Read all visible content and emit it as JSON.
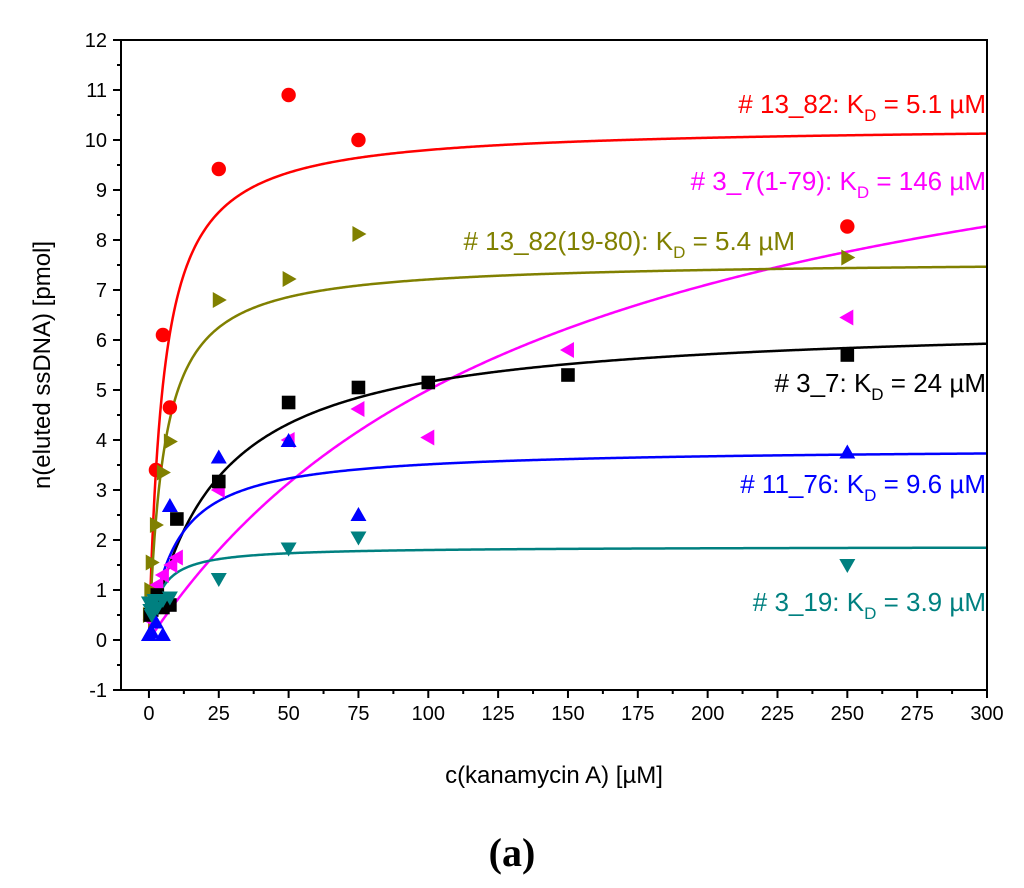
{
  "chart_data": {
    "type": "scatter",
    "title": "",
    "xlabel": "c(kanamycin A) [µM]",
    "ylabel": "n(eluted ssDNA) [pmol]",
    "xlim": [
      -10,
      300
    ],
    "ylim": [
      -1,
      12
    ],
    "x_ticks": [
      0,
      25,
      50,
      75,
      100,
      125,
      150,
      175,
      200,
      225,
      250,
      275,
      300
    ],
    "y_ticks": [
      -1,
      0,
      1,
      2,
      3,
      4,
      5,
      6,
      7,
      8,
      9,
      10,
      11,
      12
    ],
    "panel_label": "(a)",
    "series": [
      {
        "name": "# 13_82",
        "label_prefix": "# 13_82: K",
        "label_suffix": " = 5.1 µM",
        "kd_subscript": "D",
        "color": "#ff0000",
        "marker": "circle",
        "fit": {
          "bmax": 10.3,
          "kd": 5.1
        },
        "x": [
          2.5,
          5,
          7.5,
          25,
          50,
          75,
          250
        ],
        "y": [
          3.4,
          6.1,
          4.65,
          9.42,
          10.9,
          10.0,
          8.27
        ]
      },
      {
        "name": "# 3_7(1-79)",
        "label_prefix": "# 3_7(1-79): K",
        "label_suffix": " = 146 µM",
        "kd_subscript": "D",
        "color": "#ff00ff",
        "marker": "triangle-left",
        "fit": {
          "bmax": 12.3,
          "kd": 146
        },
        "x": [
          0.5,
          1,
          2,
          3,
          5,
          8,
          10,
          25,
          50,
          75,
          100,
          150,
          250
        ],
        "y": [
          0.4,
          0.7,
          1.05,
          1.1,
          1.3,
          1.5,
          1.65,
          3.0,
          4.0,
          4.62,
          4.05,
          5.8,
          6.45
        ]
      },
      {
        "name": "# 13_82(19-80)",
        "label_prefix": "# 13_82(19-80): K",
        "label_suffix": " = 5.4 µM",
        "kd_subscript": "D",
        "color": "#808000",
        "marker": "triangle-right",
        "fit": {
          "bmax": 7.6,
          "kd": 5.4
        },
        "x": [
          0,
          0.5,
          1,
          2.5,
          5,
          7.5,
          25,
          50,
          75,
          250
        ],
        "y": [
          0.5,
          1.0,
          1.55,
          2.3,
          3.35,
          3.97,
          6.8,
          7.22,
          8.12,
          7.65
        ]
      },
      {
        "name": "# 3_7",
        "label_prefix": "# 3_7: K",
        "label_suffix": " = 24 µM",
        "kd_subscript": "D",
        "color": "#000000",
        "marker": "square",
        "fit": {
          "bmax": 6.4,
          "kd": 24
        },
        "x": [
          0.5,
          1,
          2,
          3,
          5,
          7.5,
          10,
          25,
          50,
          75,
          100,
          150,
          250
        ],
        "y": [
          0.5,
          0.6,
          0.75,
          0.9,
          0.65,
          0.7,
          2.42,
          3.17,
          4.75,
          5.05,
          5.15,
          5.3,
          5.7
        ]
      },
      {
        "name": "# 11_76",
        "label_prefix": "# 11_76: K",
        "label_suffix": " = 9.6 µM",
        "kd_subscript": "D",
        "color": "#0000ff",
        "marker": "triangle-up",
        "fit": {
          "bmax": 3.85,
          "kd": 9.6
        },
        "x": [
          0,
          1,
          2.5,
          5,
          7.5,
          25,
          50,
          75,
          250
        ],
        "y": [
          0.1,
          0.15,
          0.35,
          0.1,
          2.68,
          3.65,
          3.98,
          2.5,
          3.75
        ]
      },
      {
        "name": "# 3_19",
        "label_prefix": "# 3_19: K",
        "label_suffix": " = 3.9 µM",
        "kd_subscript": "D",
        "color": "#008080",
        "marker": "triangle-down",
        "fit": {
          "bmax": 1.87,
          "kd": 3.9
        },
        "x": [
          0,
          0.5,
          1,
          2,
          3,
          5,
          7.5,
          25,
          50,
          75,
          250
        ],
        "y": [
          0.75,
          0.6,
          0.5,
          0.8,
          0.65,
          0.8,
          0.85,
          1.22,
          1.83,
          2.05,
          1.5
        ]
      }
    ]
  }
}
